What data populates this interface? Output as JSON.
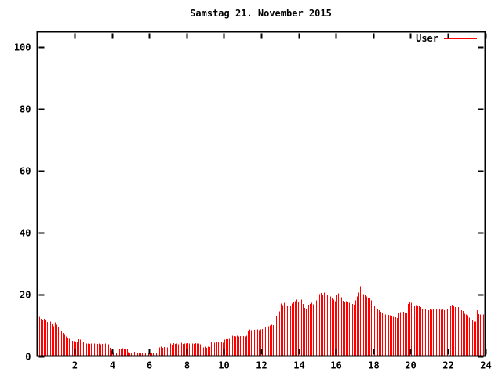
{
  "window": {
    "background": "#ffffff"
  },
  "chart_data": {
    "type": "bar",
    "subtype": "impulses",
    "title": "Samstag 21. November 2015",
    "xlabel": "",
    "ylabel": "",
    "x_unit": "hour-of-day",
    "sample_interval_minutes": 5,
    "xlim": [
      0,
      24
    ],
    "ylim": [
      0,
      105
    ],
    "xticks": [
      2,
      4,
      6,
      8,
      10,
      12,
      14,
      16,
      18,
      20,
      22,
      24
    ],
    "yticks": [
      0,
      20,
      40,
      60,
      80,
      100
    ],
    "grid": false,
    "legend_position": "top-right-inside",
    "axis_color": "#000000",
    "series": [
      {
        "name": "User",
        "color": "#ff0000",
        "values": [
          13.4,
          12.7,
          12.1,
          11.8,
          12.0,
          11.5,
          11.0,
          11.7,
          11.2,
          10.4,
          9.7,
          10.9,
          10.2,
          9.5,
          8.8,
          8.1,
          7.5,
          6.9,
          6.4,
          6.0,
          5.6,
          5.3,
          5.0,
          4.8,
          4.6,
          4.5,
          5.5,
          5.3,
          5.0,
          4.6,
          4.3,
          4.1,
          4.0,
          3.9,
          4.0,
          4.1,
          4.1,
          4.0,
          3.9,
          4.0,
          3.8,
          3.9,
          3.8,
          4.0,
          3.9,
          3.8,
          2.6,
          1.8,
          1.3,
          0.9,
          1.0,
          0.8,
          2.4,
          2.2,
          2.5,
          2.3,
          2.1,
          2.4,
          1.3,
          1.1,
          1.2,
          1.0,
          1.4,
          1.1,
          1.2,
          1.0,
          0.9,
          1.1,
          1.0,
          0.9,
          1.0,
          1.1,
          0.9,
          1.0,
          1.2,
          1.0,
          1.1,
          2.6,
          2.8,
          3.0,
          2.7,
          2.9,
          3.1,
          2.8,
          3.8,
          4.0,
          3.7,
          4.2,
          3.9,
          4.1,
          3.8,
          4.0,
          4.3,
          3.9,
          4.1,
          4.0,
          4.2,
          4.0,
          4.3,
          4.1,
          3.9,
          4.2,
          4.0,
          4.1,
          3.8,
          2.9,
          2.8,
          3.0,
          2.7,
          3.1,
          2.9,
          4.4,
          4.6,
          4.3,
          4.5,
          4.4,
          4.6,
          4.4,
          4.5,
          4.3,
          5.3,
          5.5,
          5.4,
          5.6,
          6.4,
          6.6,
          6.5,
          6.3,
          6.6,
          6.4,
          6.5,
          6.6,
          6.5,
          6.4,
          6.6,
          8.3,
          8.6,
          8.4,
          8.6,
          8.5,
          8.3,
          8.6,
          8.4,
          8.6,
          8.8,
          8.6,
          9.4,
          9.2,
          9.6,
          9.9,
          10.2,
          10.0,
          12.0,
          12.8,
          13.7,
          14.5,
          17.0,
          16.5,
          17.2,
          16.8,
          16.3,
          16.6,
          16.2,
          17.0,
          17.4,
          17.8,
          18.2,
          17.6,
          18.8,
          18.2,
          16.9,
          15.6,
          15.4,
          16.2,
          16.6,
          16.9,
          17.3,
          16.7,
          17.6,
          18.0,
          19.3,
          20.0,
          20.4,
          19.8,
          20.6,
          20.2,
          19.7,
          20.1,
          19.3,
          18.8,
          18.2,
          17.8,
          19.6,
          20.3,
          20.5,
          19.0,
          17.9,
          17.6,
          17.8,
          17.5,
          17.2,
          17.5,
          16.9,
          16.6,
          18.0,
          19.3,
          20.6,
          22.6,
          21.2,
          20.0,
          19.9,
          19.3,
          18.9,
          18.6,
          18.0,
          17.4,
          16.4,
          15.8,
          15.3,
          14.8,
          14.3,
          14.0,
          13.7,
          13.5,
          13.4,
          13.3,
          13.2,
          13.0,
          12.7,
          12.4,
          12.6,
          12.3,
          14.0,
          14.2,
          13.9,
          14.3,
          14.1,
          13.8,
          16.9,
          17.6,
          17.2,
          16.5,
          16.2,
          16.5,
          16.1,
          16.3,
          15.8,
          15.3,
          15.6,
          15.1,
          15.0,
          14.9,
          15.2,
          15.0,
          15.3,
          15.1,
          15.4,
          15.2,
          15.3,
          15.0,
          15.2,
          14.9,
          15.1,
          15.3,
          15.8,
          16.2,
          16.6,
          16.1,
          15.9,
          16.2,
          15.8,
          15.5,
          14.9,
          14.6,
          13.7,
          13.4,
          13.2,
          12.4,
          11.9,
          11.6,
          11.2,
          11.1,
          14.9,
          13.6,
          13.4,
          13.2,
          13.4,
          13.1
        ]
      }
    ]
  }
}
